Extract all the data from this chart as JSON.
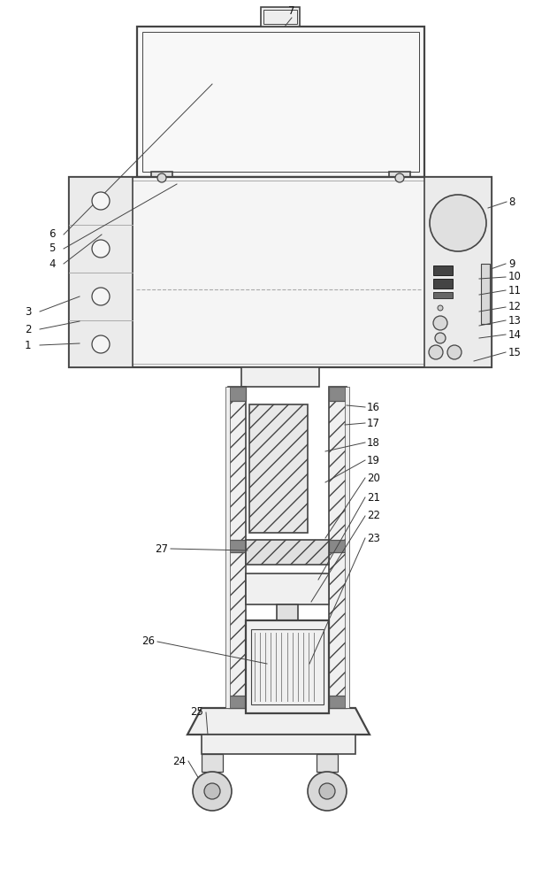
{
  "bg_color": "#ffffff",
  "line_color": "#444444",
  "label_color": "#111111",
  "fig_width": 6.3,
  "fig_height": 10.0,
  "dpi": 100
}
